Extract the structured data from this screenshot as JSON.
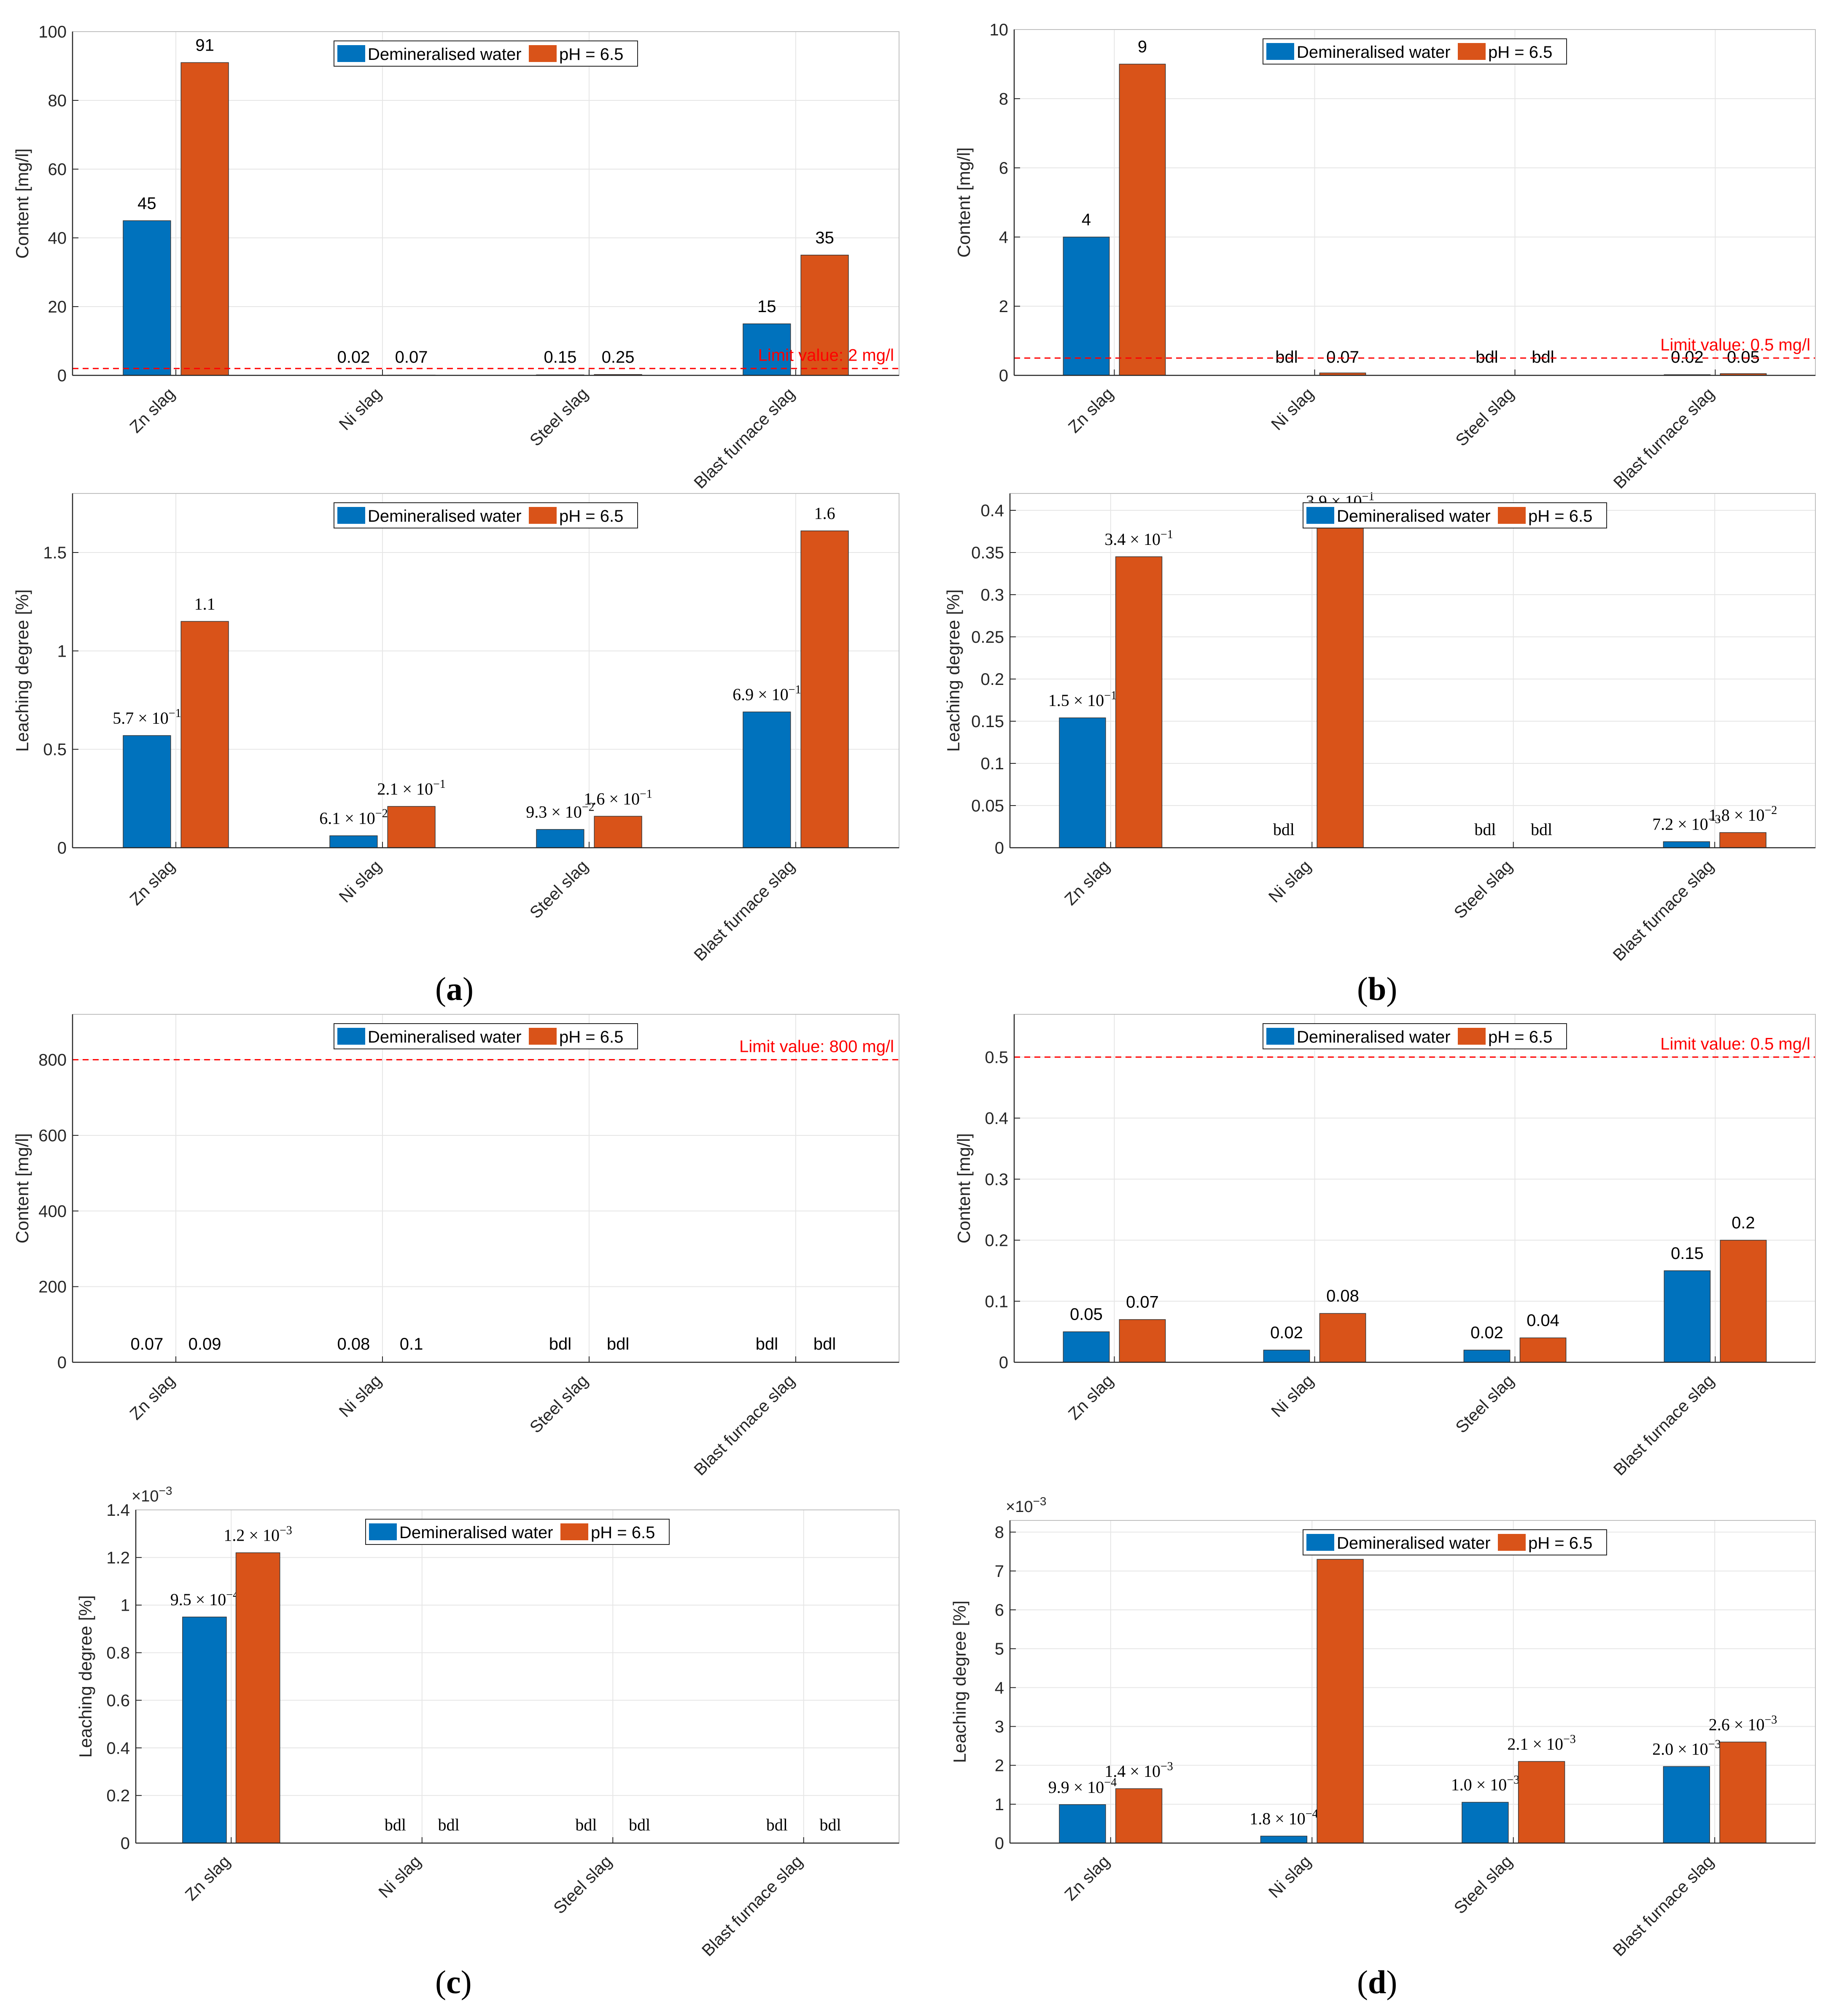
{
  "legend_labels": [
    "Demineralised water",
    "pH = 6.5"
  ],
  "series_colors": [
    "#0072BD",
    "#D95319"
  ],
  "limit_color": "#FF0000",
  "categories": [
    "Zn slag",
    "Ni slag",
    "Steel slag",
    "Blast furnace slag"
  ],
  "panel_labels": {
    "a": "a",
    "b": "b",
    "c": "c",
    "d": "d"
  },
  "chart_data": [
    {
      "id": "a-top",
      "type": "bar",
      "ylabel": "Content [mg/l]",
      "ylim": [
        0,
        100
      ],
      "yticks": [
        0,
        20,
        40,
        60,
        80,
        100
      ],
      "ytick_labels": [
        "0",
        "20",
        "40",
        "60",
        "80",
        "100"
      ],
      "label_style": "sans",
      "legend_position": "top-center",
      "limit": {
        "value": 2,
        "label": "Limit value: 2 mg/l"
      },
      "series": [
        {
          "name": "Demineralised water",
          "values": [
            45,
            0.02,
            0.15,
            15
          ],
          "labels": [
            "45",
            "0.02",
            "0.15",
            "15"
          ]
        },
        {
          "name": "pH = 6.5",
          "values": [
            91,
            0.07,
            0.25,
            35
          ],
          "labels": [
            "91",
            "0.07",
            "0.25",
            "35"
          ]
        }
      ]
    },
    {
      "id": "b-top",
      "type": "bar",
      "ylabel": "Content [mg/l]",
      "ylim": [
        0,
        10
      ],
      "yticks": [
        0,
        2,
        4,
        6,
        8,
        10
      ],
      "ytick_labels": [
        "0",
        "2",
        "4",
        "6",
        "8",
        "10"
      ],
      "label_style": "sans",
      "legend_position": "top-center",
      "limit": {
        "value": 0.5,
        "label": "Limit value: 0.5 mg/l"
      },
      "series": [
        {
          "name": "Demineralised water",
          "values": [
            4,
            0,
            0,
            0.02
          ],
          "labels": [
            "4",
            "bdl",
            "bdl",
            "0.02"
          ]
        },
        {
          "name": "pH = 6.5",
          "values": [
            9,
            0.07,
            0,
            0.05
          ],
          "labels": [
            "9",
            "0.07",
            "bdl",
            "0.05"
          ]
        }
      ]
    },
    {
      "id": "a-bottom",
      "type": "bar",
      "ylabel": "Leaching degree [%]",
      "ylim": [
        0,
        1.8
      ],
      "yticks": [
        0,
        0.5,
        1,
        1.5
      ],
      "ytick_labels": [
        "0",
        "0.5",
        "1",
        "1.5"
      ],
      "label_style": "serif",
      "legend_position": "top-center",
      "series": [
        {
          "name": "Demineralised water",
          "values": [
            0.57,
            0.061,
            0.093,
            0.69
          ],
          "labels": [
            [
              "5.7",
              "-1"
            ],
            [
              "6.1",
              "-2"
            ],
            [
              "9.3",
              "-2"
            ],
            [
              "6.9",
              "-1"
            ]
          ]
        },
        {
          "name": "pH = 6.5",
          "values": [
            1.15,
            0.21,
            0.16,
            1.61
          ],
          "labels": [
            "1.1",
            [
              "2.1",
              "-1"
            ],
            [
              "1.6",
              "-1"
            ],
            "1.6"
          ]
        }
      ]
    },
    {
      "id": "b-bottom",
      "type": "bar",
      "ylabel": "Leaching degree [%]",
      "ylim": [
        0,
        0.42
      ],
      "yticks": [
        0,
        0.05,
        0.1,
        0.15,
        0.2,
        0.25,
        0.3,
        0.35,
        0.4
      ],
      "ytick_labels": [
        "0",
        "0.05",
        "0.1",
        "0.15",
        "0.2",
        "0.25",
        "0.3",
        "0.35",
        "0.4"
      ],
      "label_style": "serif",
      "legend_position": "top-center",
      "series": [
        {
          "name": "Demineralised water",
          "values": [
            0.154,
            0,
            0,
            0.0072
          ],
          "labels": [
            [
              "1.5",
              "-1"
            ],
            "bdl",
            "bdl",
            [
              "7.2",
              "-3"
            ]
          ]
        },
        {
          "name": "pH = 6.5",
          "values": [
            0.345,
            0.39,
            0,
            0.018
          ],
          "labels": [
            [
              "3.4",
              "-1"
            ],
            [
              "3.9",
              "-1"
            ],
            "bdl",
            [
              "1.8",
              "-2"
            ]
          ]
        }
      ]
    },
    {
      "id": "c-top",
      "type": "bar",
      "ylabel": "Content [mg/l]",
      "ylim": [
        0,
        920
      ],
      "yticks": [
        0,
        200,
        400,
        600,
        800
      ],
      "ytick_labels": [
        "0",
        "200",
        "400",
        "600",
        "800"
      ],
      "label_style": "sans",
      "legend_position": "top-center",
      "limit": {
        "value": 800,
        "label": "Limit value: 800 mg/l"
      },
      "series": [
        {
          "name": "Demineralised water",
          "values": [
            0.07,
            0.08,
            0,
            0
          ],
          "labels": [
            "0.07",
            "0.08",
            "bdl",
            "bdl"
          ]
        },
        {
          "name": "pH = 6.5",
          "values": [
            0.09,
            0.1,
            0,
            0
          ],
          "labels": [
            "0.09",
            "0.1",
            "bdl",
            "bdl"
          ]
        }
      ]
    },
    {
      "id": "d-top",
      "type": "bar",
      "ylabel": "Content [mg/l]",
      "ylim": [
        0,
        0.57
      ],
      "yticks": [
        0,
        0.1,
        0.2,
        0.3,
        0.4,
        0.5
      ],
      "ytick_labels": [
        "0",
        "0.1",
        "0.2",
        "0.3",
        "0.4",
        "0.5"
      ],
      "label_style": "sans",
      "legend_position": "top-center",
      "limit": {
        "value": 0.5,
        "label": "Limit value: 0.5 mg/l"
      },
      "series": [
        {
          "name": "Demineralised water",
          "values": [
            0.05,
            0.02,
            0.02,
            0.15
          ],
          "labels": [
            "0.05",
            "0.02",
            "0.02",
            "0.15"
          ]
        },
        {
          "name": "pH = 6.5",
          "values": [
            0.07,
            0.08,
            0.04,
            0.2
          ],
          "labels": [
            "0.07",
            "0.08",
            "0.04",
            "0.2"
          ]
        }
      ]
    },
    {
      "id": "c-bottom",
      "type": "bar",
      "ylabel": "Leaching degree [%]",
      "ylim": [
        0,
        1.4
      ],
      "yticks": [
        0,
        0.2,
        0.4,
        0.6,
        0.8,
        1,
        1.2,
        1.4
      ],
      "ytick_labels": [
        "0",
        "0.2",
        "0.4",
        "0.6",
        "0.8",
        "1",
        "1.2",
        "1.4"
      ],
      "yexponent": "-3",
      "label_style": "serif",
      "legend_position": "top-center",
      "series": [
        {
          "name": "Demineralised water",
          "values": [
            0.95,
            0,
            0,
            0
          ],
          "labels": [
            [
              "9.5",
              "-4"
            ],
            "bdl",
            "bdl",
            "bdl"
          ]
        },
        {
          "name": "pH = 6.5",
          "values": [
            1.22,
            0,
            0,
            0
          ],
          "labels": [
            [
              "1.2",
              "-3"
            ],
            "bdl",
            "bdl",
            "bdl"
          ]
        }
      ]
    },
    {
      "id": "d-bottom",
      "type": "bar",
      "ylabel": "Leaching degree [%]",
      "ylim": [
        0,
        8.3
      ],
      "yticks": [
        0,
        1,
        2,
        3,
        4,
        5,
        6,
        7,
        8
      ],
      "ytick_labels": [
        "0",
        "1",
        "2",
        "3",
        "4",
        "5",
        "6",
        "7",
        "8"
      ],
      "yexponent": "-3",
      "label_style": "serif",
      "legend_position": "top-center",
      "series": [
        {
          "name": "Demineralised water",
          "values": [
            0.99,
            0.18,
            1.05,
            1.97
          ],
          "labels": [
            [
              "9.9",
              "-4"
            ],
            [
              "1.8",
              "-4"
            ],
            [
              "1.0",
              "-3"
            ],
            [
              "2.0",
              "-3"
            ]
          ]
        },
        {
          "name": "pH = 6.5",
          "values": [
            1.4,
            7.3,
            2.1,
            2.6
          ],
          "labels": [
            [
              "1.4",
              "-3"
            ],
            [
              "7.3",
              "-3"
            ],
            [
              "2.1",
              "-3"
            ],
            [
              "2.6",
              "-3"
            ]
          ]
        }
      ]
    }
  ]
}
